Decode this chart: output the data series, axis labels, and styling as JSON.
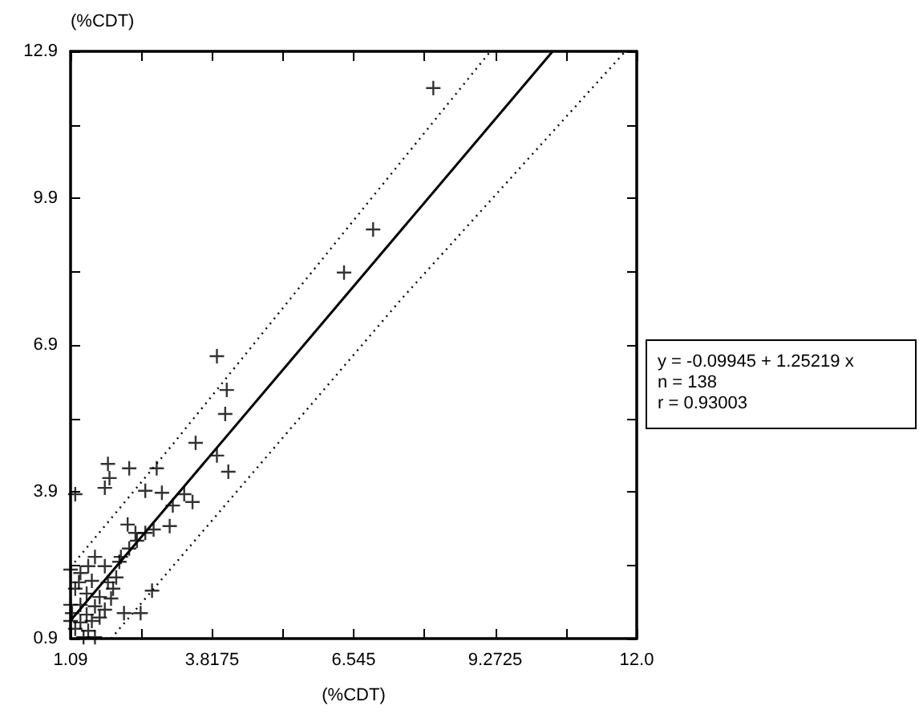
{
  "chart_data": {
    "type": "scatter",
    "ylabel": "(%CDT)",
    "xlabel": "(%CDT)",
    "annotations": [
      "y = -0.09945 + 1.25219 x",
      "n = 138",
      "r = 0.93003"
    ],
    "xlim": [
      1.09,
      12.0
    ],
    "ylim": [
      0.9,
      12.9
    ],
    "xticks": [
      1.09,
      {
        "value": 2.45375,
        "label": null
      },
      3.8175,
      {
        "value": 5.18125,
        "label": null
      },
      6.545,
      {
        "value": 7.90875,
        "label": null
      },
      9.2725,
      {
        "value": 10.63625,
        "label": null
      },
      {
        "value": 12.0,
        "label": "12.0"
      }
    ],
    "yticks": [
      0.9,
      {
        "value": 2.4,
        "label": null
      },
      3.9,
      {
        "value": 5.4,
        "label": null
      },
      6.9,
      {
        "value": 8.4,
        "label": null
      },
      9.9,
      {
        "value": 11.4,
        "label": null
      },
      12.9
    ],
    "grid": false,
    "series": [
      {
        "color": "#000000",
        "marker": "cross",
        "x": [
          8.08,
          6.92,
          6.36,
          3.91,
          4.1,
          4.07,
          3.5,
          3.91,
          4.13,
          1.81,
          1.84,
          2.22,
          2.75,
          1.75,
          2.53,
          2.85,
          1.18,
          3.06,
          3.28,
          3.44,
          3.0,
          2.69,
          2.53,
          2.34,
          2.37,
          2.22,
          2.19,
          2.06,
          2.03,
          1.56,
          1.43,
          1.75,
          1.28,
          1.09,
          1.5,
          1.81,
          1.97,
          1.18,
          1.4,
          1.65,
          1.87,
          1.28,
          1.56,
          1.75,
          1.12,
          1.4,
          1.65,
          1.09,
          1.28,
          1.5,
          1.18,
          1.43,
          1.34,
          2.12,
          2.44,
          2.66,
          1.91,
          1.56,
          1.09,
          1.25
        ],
        "values": [
          12.15,
          9.26,
          8.38,
          6.67,
          5.98,
          5.49,
          4.9,
          4.64,
          4.31,
          4.47,
          4.18,
          4.38,
          4.38,
          3.98,
          3.92,
          3.88,
          3.85,
          3.62,
          3.85,
          3.69,
          3.2,
          3.13,
          3.06,
          3.06,
          2.9,
          2.74,
          3.23,
          2.57,
          2.47,
          2.57,
          2.38,
          2.38,
          2.24,
          2.31,
          2.08,
          2.05,
          2.15,
          1.92,
          1.82,
          1.75,
          1.72,
          1.59,
          1.56,
          1.49,
          1.42,
          1.39,
          1.33,
          1.26,
          1.23,
          1.26,
          1.1,
          1.06,
          0.93,
          1.42,
          1.42,
          1.88,
          1.92,
          0.93,
          1.59,
          2.05
        ]
      },
      {
        "type": "line",
        "color": "#000000",
        "marker": "none",
        "line_style": "solid",
        "x": [
          1.09,
          10.38
        ],
        "values": [
          1.27,
          12.9
        ]
      },
      {
        "type": "line",
        "color": "#000000",
        "marker": "none",
        "line_style": "dotted",
        "x": [
          1.09,
          3.06,
          6.73,
          9.18
        ],
        "values": [
          2.36,
          4.87,
          9.69,
          12.9
        ]
      },
      {
        "type": "line",
        "color": "#000000",
        "marker": "none",
        "line_style": "dotted",
        "x": [
          1.87,
          7.45,
          11.78
        ],
        "values": [
          0.9,
          7.82,
          12.9
        ]
      }
    ]
  }
}
